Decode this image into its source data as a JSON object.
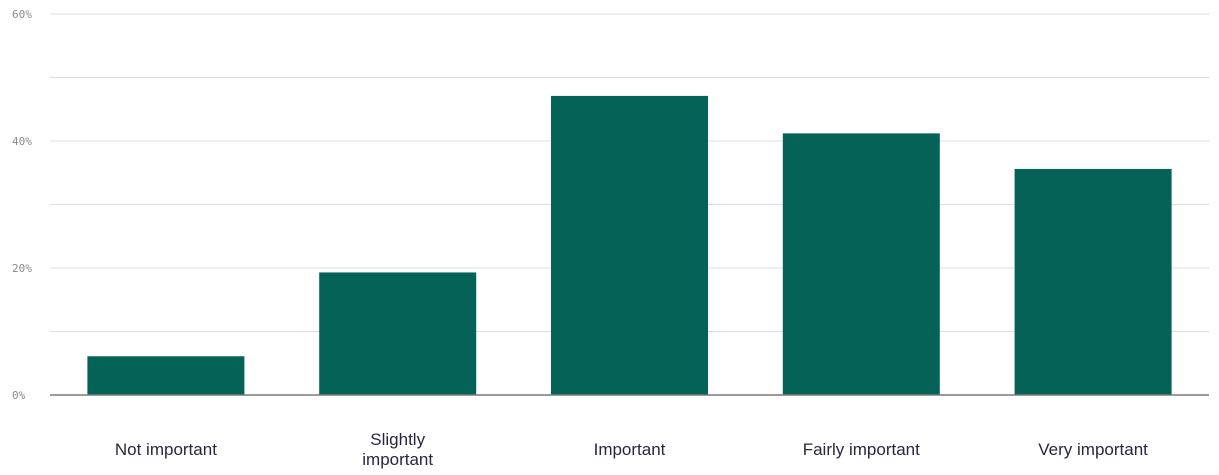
{
  "chart_data": {
    "type": "bar",
    "title": "",
    "xlabel": "",
    "ylabel": "",
    "categories": [
      [
        "Not important"
      ],
      [
        "Slightly",
        "important"
      ],
      [
        "Important"
      ],
      [
        "Fairly important"
      ],
      [
        "Very important"
      ]
    ],
    "values": [
      6.1,
      19.3,
      47.1,
      41.2,
      35.6
    ],
    "unit": "%",
    "ylim": [
      0,
      60
    ],
    "yticks": [
      {
        "value": 0,
        "label": "0%"
      },
      {
        "value": 20,
        "label": "20%"
      },
      {
        "value": 40,
        "label": "40%"
      },
      {
        "value": 60,
        "label": "60%"
      }
    ],
    "grid": true,
    "legend": "none",
    "colors": {
      "bar": "#056257",
      "grid": "#dcdcdc",
      "axis": "#7a7a7a"
    }
  }
}
